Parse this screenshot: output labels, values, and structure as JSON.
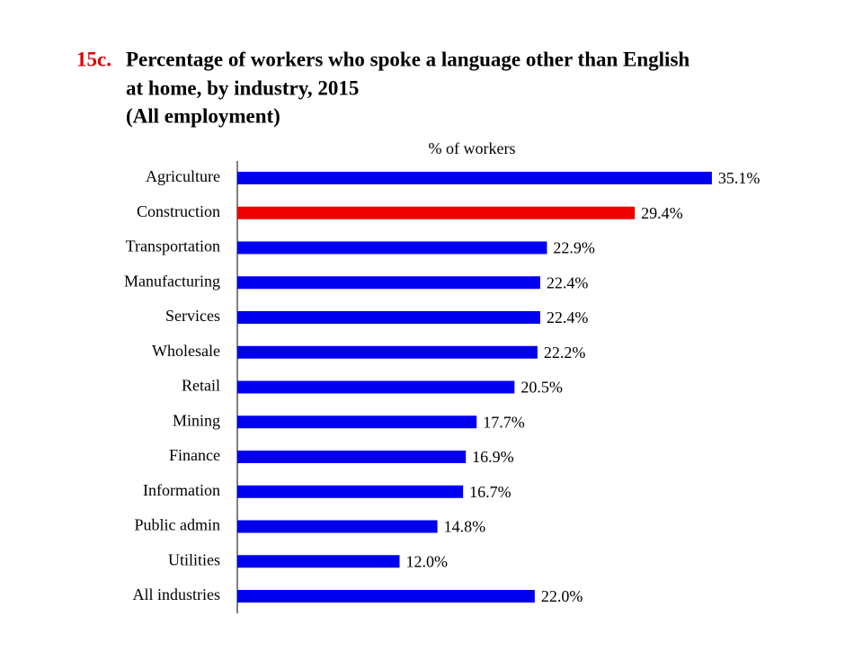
{
  "chart_data": {
    "type": "bar",
    "orientation": "horizontal",
    "title_number": "15c.",
    "title": [
      "Percentage of workers who spoke a language other than English",
      "at home, by industry, 2015",
      "(All employment)"
    ],
    "x_label": "% of workers",
    "categories": [
      "Agriculture",
      "Construction",
      "Transportation",
      "Manufacturing",
      "Services",
      "Wholesale",
      "Retail",
      "Mining",
      "Finance",
      "Information",
      "Public admin",
      "Utilities",
      "All industries"
    ],
    "values": [
      35.1,
      29.4,
      22.9,
      22.4,
      22.4,
      22.2,
      20.5,
      17.7,
      16.9,
      16.7,
      14.8,
      12.0,
      22.0
    ],
    "value_labels": [
      "35.1%",
      "29.4%",
      "22.9%",
      "22.4%",
      "22.4%",
      "22.2%",
      "20.5%",
      "17.7%",
      "16.9%",
      "16.7%",
      "14.8%",
      "12.0%",
      "22.0%"
    ],
    "colors": [
      "#0000ee",
      "#ee0000",
      "#0000ee",
      "#0000ee",
      "#0000ee",
      "#0000ee",
      "#0000ee",
      "#0000ee",
      "#0000ee",
      "#0000ee",
      "#0000ee",
      "#0000ee",
      "#0000ee"
    ],
    "xlim": [
      0,
      40
    ]
  }
}
